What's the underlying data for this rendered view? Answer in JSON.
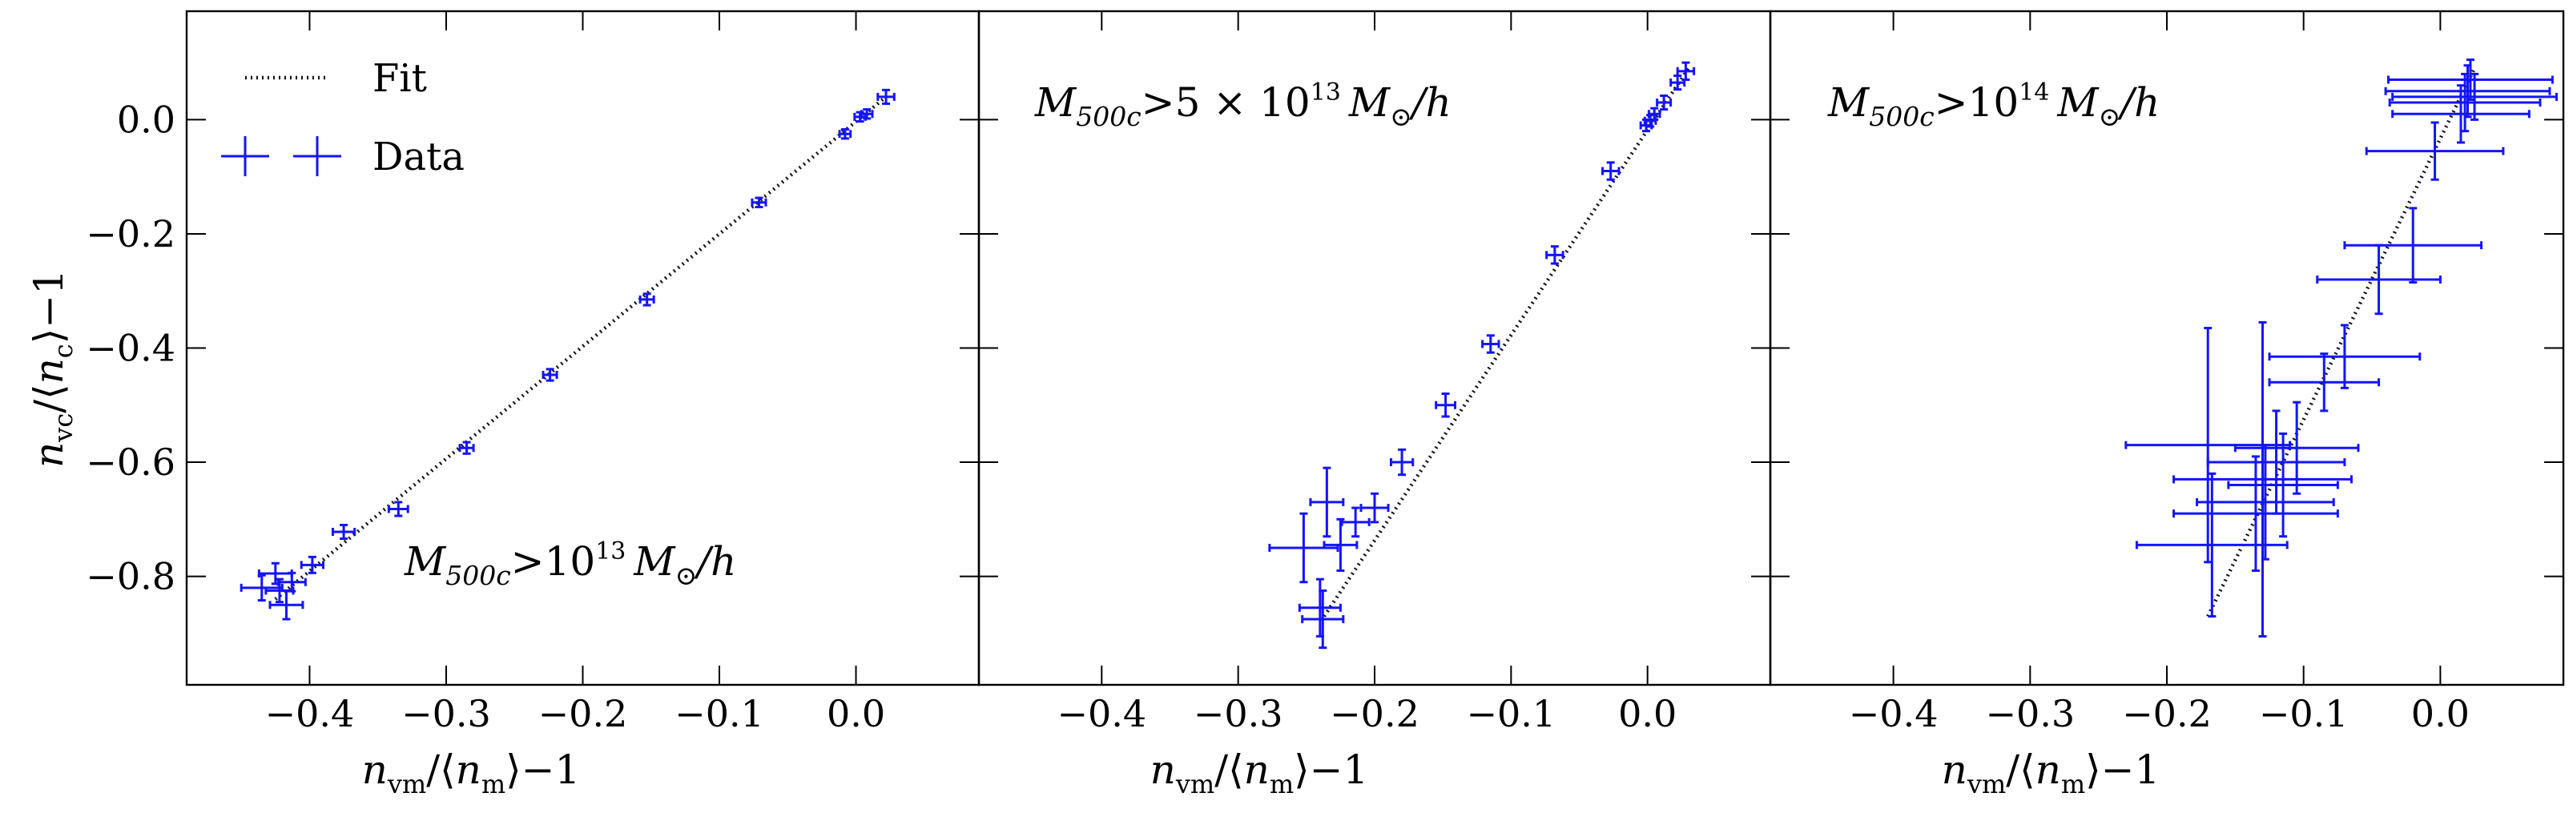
{
  "colors": {
    "data": "#1414ff",
    "fit": "#111111",
    "axis": "#000000"
  },
  "legend": {
    "fit_label": "Fit",
    "data_label": "Data",
    "placement": "upper-left"
  },
  "shared_axes": {
    "ylabel": "n_vc/⟨n_c⟩−1",
    "ylabel_parts": {
      "n": "n",
      "sub1": "vc",
      "mid": "/⟨",
      "n2": "n",
      "sub2": "c",
      "tail": "⟩−1"
    },
    "xlabel": "n_vm/⟨n_m⟩−1",
    "xlabel_parts": {
      "n": "n",
      "sub1": "vm",
      "mid": "/⟨",
      "n2": "n",
      "sub2": "m",
      "tail": "⟩−1"
    },
    "xlim": [
      -0.49,
      0.09
    ],
    "ylim": [
      -0.99,
      0.19
    ],
    "xticks": [
      -0.4,
      -0.3,
      -0.2,
      -0.1,
      0.0
    ],
    "xtick_labels": [
      "−0.4",
      "−0.3",
      "−0.2",
      "−0.1",
      "0.0"
    ],
    "yticks": [
      0.0,
      -0.2,
      -0.4,
      -0.6,
      -0.8
    ],
    "ytick_labels": [
      "0.0",
      "−0.2",
      "−0.4",
      "−0.6",
      "−0.8"
    ]
  },
  "chart_data": [
    {
      "type": "scatter",
      "panel": 1,
      "annotation": "M_500c > 10^13 M_⊙/h",
      "annotation_parts": {
        "M": "M",
        "sub": "500c",
        "gt": ">10",
        "sup": "13",
        "unit": "M",
        "unit_sub": "⊙",
        "tail": "/h"
      },
      "fit": {
        "x": [
          -0.425,
          0.022
        ],
        "y": [
          -0.84,
          0.04
        ]
      },
      "series": [
        {
          "name": "Data",
          "points": [
            {
              "x": 0.022,
              "y": 0.04,
              "xerr": 0.006,
              "yerr": 0.012
            },
            {
              "x": 0.008,
              "y": 0.01,
              "xerr": 0.004,
              "yerr": 0.008
            },
            {
              "x": 0.003,
              "y": 0.005,
              "xerr": 0.004,
              "yerr": 0.008
            },
            {
              "x": -0.008,
              "y": -0.025,
              "xerr": 0.004,
              "yerr": 0.008
            },
            {
              "x": -0.071,
              "y": -0.145,
              "xerr": 0.005,
              "yerr": 0.008
            },
            {
              "x": -0.153,
              "y": -0.315,
              "xerr": 0.005,
              "yerr": 0.01
            },
            {
              "x": -0.224,
              "y": -0.447,
              "xerr": 0.005,
              "yerr": 0.01
            },
            {
              "x": -0.285,
              "y": -0.575,
              "xerr": 0.005,
              "yerr": 0.01
            },
            {
              "x": -0.335,
              "y": -0.682,
              "xerr": 0.007,
              "yerr": 0.012
            },
            {
              "x": -0.375,
              "y": -0.722,
              "xerr": 0.008,
              "yerr": 0.012
            },
            {
              "x": -0.398,
              "y": -0.78,
              "xerr": 0.008,
              "yerr": 0.014
            },
            {
              "x": -0.413,
              "y": -0.81,
              "xerr": 0.01,
              "yerr": 0.016
            },
            {
              "x": -0.425,
              "y": -0.795,
              "xerr": 0.012,
              "yerr": 0.018
            },
            {
              "x": -0.435,
              "y": -0.82,
              "xerr": 0.015,
              "yerr": 0.022
            },
            {
              "x": -0.422,
              "y": -0.825,
              "xerr": 0.01,
              "yerr": 0.02
            },
            {
              "x": -0.417,
              "y": -0.85,
              "xerr": 0.012,
              "yerr": 0.025
            }
          ]
        }
      ]
    },
    {
      "type": "scatter",
      "panel": 2,
      "annotation": "M_500c > 5 × 10^13 M_⊙/h",
      "annotation_parts": {
        "M": "M",
        "sub": "500c",
        "gt": ">5 × 10",
        "sup": "13",
        "unit": "M",
        "unit_sub": "⊙",
        "tail": "/h"
      },
      "fit": {
        "x": [
          -0.237,
          0.03
        ],
        "y": [
          -0.87,
          0.09
        ]
      },
      "series": [
        {
          "name": "Data",
          "points": [
            {
              "x": 0.028,
              "y": 0.085,
              "xerr": 0.006,
              "yerr": 0.015
            },
            {
              "x": 0.022,
              "y": 0.065,
              "xerr": 0.005,
              "yerr": 0.012
            },
            {
              "x": 0.012,
              "y": 0.03,
              "xerr": 0.005,
              "yerr": 0.012
            },
            {
              "x": 0.005,
              "y": 0.01,
              "xerr": 0.004,
              "yerr": 0.01
            },
            {
              "x": 0.002,
              "y": -0.002,
              "xerr": 0.004,
              "yerr": 0.01
            },
            {
              "x": -0.001,
              "y": -0.01,
              "xerr": 0.004,
              "yerr": 0.01
            },
            {
              "x": -0.027,
              "y": -0.09,
              "xerr": 0.006,
              "yerr": 0.015
            },
            {
              "x": -0.068,
              "y": -0.237,
              "xerr": 0.006,
              "yerr": 0.015
            },
            {
              "x": -0.115,
              "y": -0.393,
              "xerr": 0.006,
              "yerr": 0.015
            },
            {
              "x": -0.148,
              "y": -0.5,
              "xerr": 0.007,
              "yerr": 0.02
            },
            {
              "x": -0.18,
              "y": -0.6,
              "xerr": 0.008,
              "yerr": 0.022
            },
            {
              "x": -0.2,
              "y": -0.68,
              "xerr": 0.01,
              "yerr": 0.025
            },
            {
              "x": -0.214,
              "y": -0.705,
              "xerr": 0.01,
              "yerr": 0.025
            },
            {
              "x": -0.235,
              "y": -0.67,
              "xerr": 0.012,
              "yerr": 0.06
            },
            {
              "x": -0.225,
              "y": -0.745,
              "xerr": 0.012,
              "yerr": 0.045
            },
            {
              "x": -0.252,
              "y": -0.75,
              "xerr": 0.025,
              "yerr": 0.06
            },
            {
              "x": -0.24,
              "y": -0.855,
              "xerr": 0.015,
              "yerr": 0.05
            },
            {
              "x": -0.238,
              "y": -0.875,
              "xerr": 0.015,
              "yerr": 0.05
            }
          ]
        }
      ]
    },
    {
      "type": "scatter",
      "panel": 3,
      "annotation": "M_500c > 10^14 M_⊙/h",
      "annotation_parts": {
        "M": "M",
        "sub": "500c",
        "gt": ">10",
        "sup": "14",
        "unit": "M",
        "unit_sub": "⊙",
        "tail": "/h"
      },
      "fit": {
        "x": [
          -0.17,
          0.025
        ],
        "y": [
          -0.87,
          0.09
        ]
      },
      "series": [
        {
          "name": "Data",
          "points": [
            {
              "x": 0.022,
              "y": 0.07,
              "xerr": 0.06,
              "yerr": 0.035
            },
            {
              "x": 0.02,
              "y": 0.05,
              "xerr": 0.06,
              "yerr": 0.045
            },
            {
              "x": 0.025,
              "y": 0.04,
              "xerr": 0.06,
              "yerr": 0.04
            },
            {
              "x": 0.018,
              "y": 0.03,
              "xerr": 0.055,
              "yerr": 0.05
            },
            {
              "x": 0.015,
              "y": 0.01,
              "xerr": 0.05,
              "yerr": 0.05
            },
            {
              "x": -0.004,
              "y": -0.055,
              "xerr": 0.05,
              "yerr": 0.05
            },
            {
              "x": -0.02,
              "y": -0.22,
              "xerr": 0.05,
              "yerr": 0.065
            },
            {
              "x": -0.045,
              "y": -0.28,
              "xerr": 0.045,
              "yerr": 0.06
            },
            {
              "x": -0.07,
              "y": -0.415,
              "xerr": 0.055,
              "yerr": 0.055
            },
            {
              "x": -0.085,
              "y": -0.46,
              "xerr": 0.04,
              "yerr": 0.05
            },
            {
              "x": -0.105,
              "y": -0.575,
              "xerr": 0.045,
              "yerr": 0.08
            },
            {
              "x": -0.12,
              "y": -0.6,
              "xerr": 0.05,
              "yerr": 0.09
            },
            {
              "x": -0.115,
              "y": -0.64,
              "xerr": 0.04,
              "yerr": 0.09
            },
            {
              "x": -0.128,
              "y": -0.67,
              "xerr": 0.05,
              "yerr": 0.1
            },
            {
              "x": -0.135,
              "y": -0.69,
              "xerr": 0.06,
              "yerr": 0.1
            },
            {
              "x": -0.17,
              "y": -0.57,
              "xerr": 0.06,
              "yerr": 0.205
            },
            {
              "x": -0.13,
              "y": -0.63,
              "xerr": 0.065,
              "yerr": 0.275
            },
            {
              "x": -0.167,
              "y": -0.745,
              "xerr": 0.055,
              "yerr": 0.125
            }
          ]
        }
      ]
    }
  ]
}
